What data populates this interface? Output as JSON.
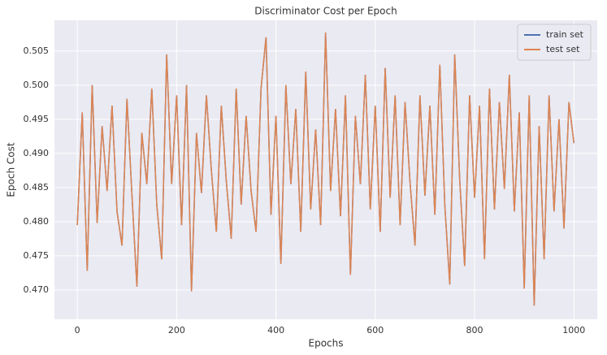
{
  "chart_data": {
    "type": "line",
    "title": "Discriminator Cost per Epoch",
    "xlabel": "Epochs",
    "ylabel": "Epoch Cost",
    "x": [
      0,
      10,
      20,
      30,
      40,
      50,
      60,
      70,
      80,
      90,
      100,
      110,
      120,
      130,
      140,
      150,
      160,
      170,
      180,
      190,
      200,
      210,
      220,
      230,
      240,
      250,
      260,
      270,
      280,
      290,
      300,
      310,
      320,
      330,
      340,
      350,
      360,
      370,
      380,
      390,
      400,
      410,
      420,
      430,
      440,
      450,
      460,
      470,
      480,
      490,
      500,
      510,
      520,
      530,
      540,
      550,
      560,
      570,
      580,
      590,
      600,
      610,
      620,
      630,
      640,
      650,
      660,
      670,
      680,
      690,
      700,
      710,
      720,
      730,
      740,
      750,
      760,
      770,
      780,
      790,
      800,
      810,
      820,
      830,
      840,
      850,
      860,
      870,
      880,
      890,
      900,
      910,
      920,
      930,
      940,
      950,
      960,
      970,
      980,
      990,
      1000
    ],
    "series": [
      {
        "name": "train set",
        "color": "#4c72b0",
        "values": [
          0.4795,
          0.496,
          0.4728,
          0.5,
          0.4798,
          0.494,
          0.4845,
          0.497,
          0.4815,
          0.4765,
          0.498,
          0.484,
          0.4705,
          0.493,
          0.4855,
          0.4995,
          0.4825,
          0.4745,
          0.5045,
          0.4855,
          0.4985,
          0.4795,
          0.5,
          0.4698,
          0.493,
          0.4842,
          0.4985,
          0.4875,
          0.4785,
          0.497,
          0.486,
          0.4775,
          0.4995,
          0.4825,
          0.4955,
          0.4845,
          0.4785,
          0.4995,
          0.507,
          0.481,
          0.4955,
          0.4738,
          0.5,
          0.4855,
          0.4965,
          0.4785,
          0.502,
          0.4818,
          0.4935,
          0.4795,
          0.5077,
          0.4845,
          0.4965,
          0.4808,
          0.4985,
          0.4722,
          0.4955,
          0.4855,
          0.5015,
          0.4818,
          0.497,
          0.4785,
          0.5025,
          0.4835,
          0.4985,
          0.4795,
          0.4975,
          0.4858,
          0.4765,
          0.4985,
          0.4838,
          0.497,
          0.481,
          0.503,
          0.4825,
          0.4708,
          0.5045,
          0.4862,
          0.4735,
          0.4985,
          0.4835,
          0.497,
          0.4745,
          0.4995,
          0.4818,
          0.4975,
          0.4848,
          0.5015,
          0.4815,
          0.496,
          0.4702,
          0.4985,
          0.4677,
          0.494,
          0.4745,
          0.4985,
          0.4815,
          0.495,
          0.479,
          0.4975,
          0.4915
        ]
      },
      {
        "name": "test set",
        "color": "#dd8452",
        "values": [
          0.4795,
          0.496,
          0.4728,
          0.5,
          0.4798,
          0.494,
          0.4845,
          0.497,
          0.4815,
          0.4765,
          0.498,
          0.484,
          0.4705,
          0.493,
          0.4855,
          0.4995,
          0.4825,
          0.4745,
          0.5045,
          0.4855,
          0.4985,
          0.4795,
          0.5,
          0.4698,
          0.493,
          0.4842,
          0.4985,
          0.4875,
          0.4785,
          0.497,
          0.486,
          0.4775,
          0.4995,
          0.4825,
          0.4955,
          0.4845,
          0.4785,
          0.4995,
          0.507,
          0.481,
          0.4955,
          0.4738,
          0.5,
          0.4855,
          0.4965,
          0.4785,
          0.502,
          0.4818,
          0.4935,
          0.4795,
          0.5077,
          0.4845,
          0.4965,
          0.4808,
          0.4985,
          0.4722,
          0.4955,
          0.4855,
          0.5015,
          0.4818,
          0.497,
          0.4785,
          0.5025,
          0.4835,
          0.4985,
          0.4795,
          0.4975,
          0.4858,
          0.4765,
          0.4985,
          0.4838,
          0.497,
          0.481,
          0.503,
          0.4825,
          0.4708,
          0.5045,
          0.4862,
          0.4735,
          0.4985,
          0.4835,
          0.497,
          0.4745,
          0.4995,
          0.4818,
          0.4975,
          0.4848,
          0.5015,
          0.4815,
          0.496,
          0.4702,
          0.4985,
          0.4677,
          0.494,
          0.4745,
          0.4985,
          0.4815,
          0.495,
          0.479,
          0.4975,
          0.4915
        ]
      }
    ],
    "xlim": [
      -46,
      1047
    ],
    "ylim": [
      0.4657,
      0.5095
    ],
    "xticks": [
      0,
      200,
      400,
      600,
      800,
      1000
    ],
    "yticks": [
      {
        "value": 0.47,
        "label": "0.470"
      },
      0.475,
      {
        "value": 0.48,
        "label": "0.480"
      },
      0.485,
      {
        "value": 0.49,
        "label": "0.490"
      },
      0.495,
      {
        "value": 0.5,
        "label": "0.500"
      },
      0.505
    ],
    "grid": true,
    "legend": "upper right"
  }
}
